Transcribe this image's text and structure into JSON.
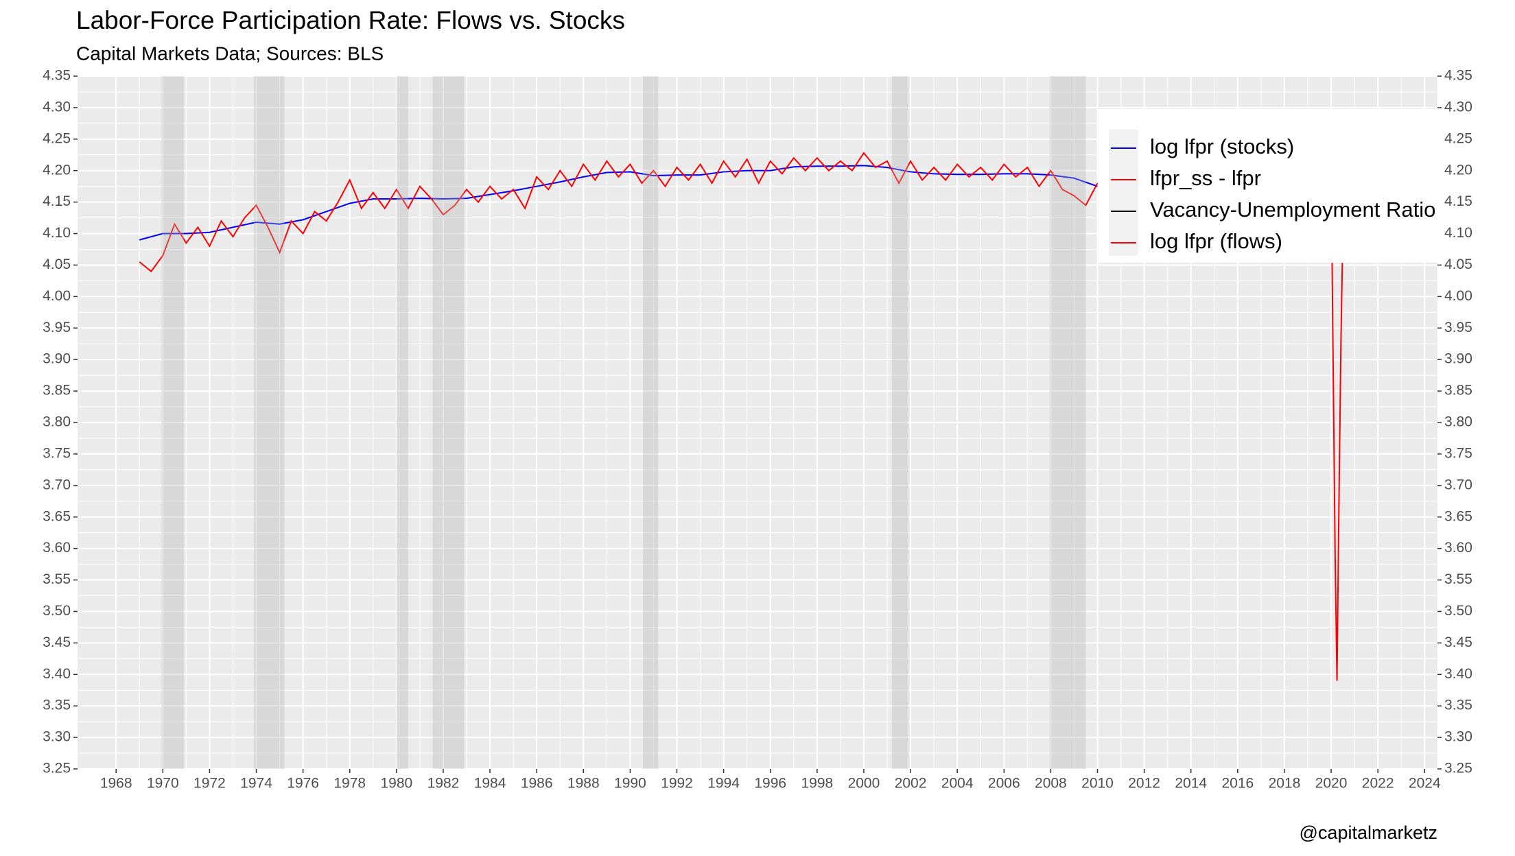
{
  "chart_data": {
    "type": "line",
    "title": "Labor-Force Participation Rate: Flows vs. Stocks",
    "subtitle": "Capital Markets Data; Sources: BLS",
    "caption": "@capitalmarketz",
    "legend": "top-right",
    "grid": true,
    "xlim": [
      1966.35,
      2024.55
    ],
    "xticks": [
      1968,
      1970,
      1972,
      1974,
      1976,
      1978,
      1980,
      1982,
      1984,
      1986,
      1988,
      1990,
      1992,
      1994,
      1996,
      1998,
      2000,
      2002,
      2004,
      2006,
      2008,
      2010,
      2012,
      2014,
      2016,
      2018,
      2020,
      2022,
      2024
    ],
    "ylim": [
      3.25,
      4.35
    ],
    "yticks": [
      3.25,
      {
        "value": 3.3,
        "label": "3.30"
      },
      3.35,
      {
        "value": 3.4,
        "label": "3.40"
      },
      3.45,
      {
        "value": 3.5,
        "label": "3.50"
      },
      3.55,
      {
        "value": 3.6,
        "label": "3.60"
      },
      3.65,
      {
        "value": 3.7,
        "label": "3.70"
      },
      3.75,
      {
        "value": 3.8,
        "label": "3.80"
      },
      3.85,
      {
        "value": 3.9,
        "label": "3.90"
      },
      3.95,
      {
        "value": 4.0,
        "label": "4.00"
      },
      4.05,
      {
        "value": 4.1,
        "label": "4.10"
      },
      4.15,
      {
        "value": 4.2,
        "label": "4.20"
      },
      4.25,
      {
        "value": 4.3,
        "label": "4.30"
      },
      4.35
    ],
    "recessions": [
      [
        1969.95,
        1970.9
      ],
      [
        1973.9,
        1975.2
      ],
      [
        1980.0,
        1980.5
      ],
      [
        1981.55,
        1982.9
      ],
      [
        1990.55,
        1991.2
      ],
      [
        2001.2,
        2001.9
      ],
      [
        2007.95,
        2009.5
      ]
    ],
    "series": [
      {
        "name": "log lfpr (stocks)",
        "color": "#0000ff",
        "x": [
          1969,
          1970,
          1971,
          1972,
          1973,
          1974,
          1975,
          1976,
          1977,
          1978,
          1979,
          1980,
          1981,
          1982,
          1983,
          1984,
          1985,
          1986,
          1987,
          1988,
          1989,
          1990,
          1991,
          1992,
          1993,
          1994,
          1995,
          1996,
          1997,
          1998,
          1999,
          2000,
          2001,
          2002,
          2003,
          2004,
          2005,
          2006,
          2007,
          2008,
          2009,
          2010
        ],
        "values": [
          4.09,
          4.1,
          4.1,
          4.102,
          4.11,
          4.118,
          4.115,
          4.122,
          4.135,
          4.148,
          4.155,
          4.155,
          4.156,
          4.155,
          4.156,
          4.162,
          4.168,
          4.175,
          4.182,
          4.19,
          4.197,
          4.198,
          4.192,
          4.193,
          4.193,
          4.198,
          4.2,
          4.2,
          4.206,
          4.207,
          4.207,
          4.208,
          4.205,
          4.198,
          4.195,
          4.194,
          4.194,
          4.195,
          4.195,
          4.193,
          4.188,
          4.175
        ]
      },
      {
        "name": "lfpr_ss - lfpr",
        "color": "#ff0000"
      },
      {
        "name": "Vacancy-Unemployment Ratio",
        "color": "#000000"
      },
      {
        "name": "log lfpr (flows)",
        "color": "#ff0000",
        "x": [
          1969,
          1969.5,
          1970,
          1970.5,
          1971,
          1971.5,
          1972,
          1972.5,
          1973,
          1973.5,
          1974,
          1974.5,
          1975,
          1975.5,
          1976,
          1976.5,
          1977,
          1977.5,
          1978,
          1978.5,
          1979,
          1979.5,
          1980,
          1980.5,
          1981,
          1981.5,
          1982,
          1982.5,
          1983,
          1983.5,
          1984,
          1984.5,
          1985,
          1985.5,
          1986,
          1986.5,
          1987,
          1987.5,
          1988,
          1988.5,
          1989,
          1989.5,
          1990,
          1990.5,
          1991,
          1991.5,
          1992,
          1992.5,
          1993,
          1993.5,
          1994,
          1994.5,
          1995,
          1995.5,
          1996,
          1996.5,
          1997,
          1997.5,
          1998,
          1998.5,
          1999,
          1999.5,
          2000,
          2000.5,
          2001,
          2001.5,
          2002,
          2002.5,
          2003,
          2003.5,
          2004,
          2004.5,
          2005,
          2005.5,
          2006,
          2006.5,
          2007,
          2007.5,
          2008,
          2008.5,
          2009,
          2009.5,
          2010,
          2020,
          2020.17,
          2020.25,
          2020.33,
          2020.42,
          2020.5
        ],
        "values": [
          4.055,
          4.04,
          4.065,
          4.115,
          4.085,
          4.11,
          4.08,
          4.12,
          4.095,
          4.125,
          4.145,
          4.11,
          4.07,
          4.12,
          4.1,
          4.135,
          4.12,
          4.15,
          4.185,
          4.14,
          4.165,
          4.14,
          4.17,
          4.14,
          4.175,
          4.155,
          4.13,
          4.145,
          4.17,
          4.15,
          4.175,
          4.155,
          4.17,
          4.14,
          4.19,
          4.17,
          4.2,
          4.175,
          4.21,
          4.185,
          4.215,
          4.19,
          4.21,
          4.18,
          4.2,
          4.175,
          4.205,
          4.185,
          4.21,
          4.18,
          4.215,
          4.19,
          4.218,
          4.18,
          4.215,
          4.195,
          4.22,
          4.2,
          4.22,
          4.2,
          4.215,
          4.2,
          4.228,
          4.205,
          4.215,
          4.18,
          4.215,
          4.185,
          4.205,
          4.185,
          4.21,
          4.19,
          4.205,
          4.185,
          4.21,
          4.19,
          4.205,
          4.175,
          4.2,
          4.17,
          4.16,
          4.145,
          4.18,
          4.2,
          3.59,
          3.39,
          3.66,
          3.93,
          4.1
        ]
      }
    ]
  }
}
